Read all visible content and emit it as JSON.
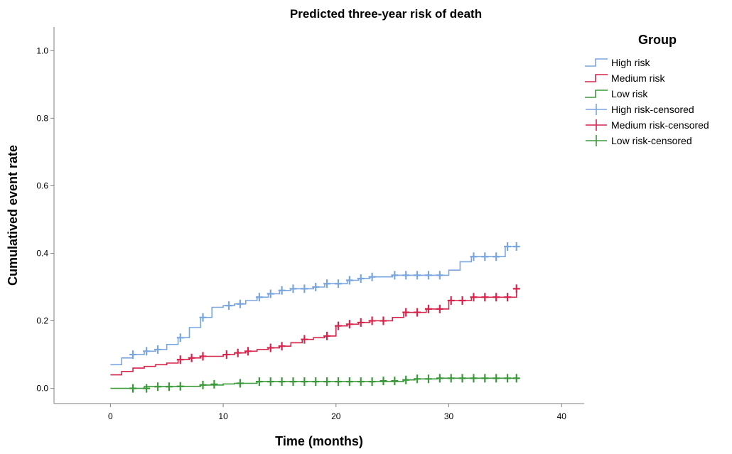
{
  "chart_data": {
    "type": "line",
    "subtype": "kaplan-meier-cumulative-event",
    "title": "Predicted three-year risk of death",
    "xlabel": "Time (months)",
    "ylabel": "Cumulatived event rate",
    "xlim": [
      -5,
      42
    ],
    "ylim": [
      -0.045,
      1.07
    ],
    "x_ticks": [
      0,
      10,
      20,
      30,
      40
    ],
    "x_tick_labels": [
      "0",
      "10",
      "20",
      "30",
      "40"
    ],
    "y_ticks": [
      0.0,
      0.2,
      0.4,
      0.6,
      0.8,
      1.0
    ],
    "y_tick_labels": [
      "0.0",
      "0.2",
      "0.4",
      "0.6",
      "0.8",
      "1.0"
    ],
    "grid": false,
    "legend": {
      "title": "Group",
      "placement": "top-right",
      "entries": [
        {
          "label": "High risk",
          "kind": "step",
          "series": "High risk"
        },
        {
          "label": "Medium risk",
          "kind": "step",
          "series": "Medium risk"
        },
        {
          "label": "Low risk",
          "kind": "step",
          "series": "Low risk"
        },
        {
          "label": "High risk-censored",
          "kind": "censor",
          "series": "High risk"
        },
        {
          "label": "Medium risk-censored",
          "kind": "censor",
          "series": "Medium risk"
        },
        {
          "label": "Low risk-censored",
          "kind": "censor",
          "series": "Low risk"
        }
      ]
    },
    "series": [
      {
        "name": "High risk",
        "color": "#7aa6e0",
        "steps": [
          [
            0,
            0.07
          ],
          [
            1,
            0.09
          ],
          [
            2,
            0.1
          ],
          [
            3,
            0.11
          ],
          [
            4,
            0.115
          ],
          [
            5,
            0.13
          ],
          [
            6,
            0.15
          ],
          [
            7,
            0.18
          ],
          [
            8,
            0.21
          ],
          [
            9,
            0.24
          ],
          [
            10,
            0.245
          ],
          [
            11,
            0.25
          ],
          [
            12,
            0.26
          ],
          [
            13,
            0.27
          ],
          [
            14,
            0.28
          ],
          [
            15,
            0.29
          ],
          [
            16,
            0.295
          ],
          [
            18,
            0.3
          ],
          [
            19,
            0.31
          ],
          [
            21,
            0.32
          ],
          [
            22,
            0.325
          ],
          [
            23,
            0.33
          ],
          [
            25,
            0.335
          ],
          [
            30,
            0.35
          ],
          [
            31,
            0.375
          ],
          [
            32,
            0.39
          ],
          [
            35,
            0.42
          ],
          [
            36,
            0.42
          ]
        ],
        "censored": [
          [
            2,
            0.1
          ],
          [
            3.2,
            0.11
          ],
          [
            4.2,
            0.115
          ],
          [
            6.2,
            0.15
          ],
          [
            8.2,
            0.21
          ],
          [
            10.5,
            0.245
          ],
          [
            11.5,
            0.25
          ],
          [
            13.2,
            0.27
          ],
          [
            14.2,
            0.28
          ],
          [
            15.2,
            0.29
          ],
          [
            16.2,
            0.295
          ],
          [
            17.2,
            0.295
          ],
          [
            18.2,
            0.3
          ],
          [
            19.2,
            0.31
          ],
          [
            20.2,
            0.31
          ],
          [
            21.2,
            0.32
          ],
          [
            22.2,
            0.325
          ],
          [
            23.2,
            0.33
          ],
          [
            25.2,
            0.335
          ],
          [
            26.2,
            0.335
          ],
          [
            27.2,
            0.335
          ],
          [
            28.2,
            0.335
          ],
          [
            29.2,
            0.335
          ],
          [
            32.2,
            0.39
          ],
          [
            33.2,
            0.39
          ],
          [
            34.2,
            0.39
          ],
          [
            35.2,
            0.42
          ],
          [
            36,
            0.42
          ]
        ]
      },
      {
        "name": "Medium risk",
        "color": "#d6244a",
        "steps": [
          [
            0,
            0.04
          ],
          [
            1,
            0.05
          ],
          [
            2,
            0.06
          ],
          [
            3,
            0.065
          ],
          [
            4,
            0.07
          ],
          [
            5,
            0.075
          ],
          [
            6,
            0.085
          ],
          [
            7,
            0.09
          ],
          [
            8,
            0.095
          ],
          [
            10,
            0.1
          ],
          [
            11,
            0.105
          ],
          [
            12,
            0.11
          ],
          [
            13,
            0.115
          ],
          [
            14,
            0.12
          ],
          [
            15,
            0.125
          ],
          [
            16,
            0.135
          ],
          [
            17,
            0.145
          ],
          [
            18,
            0.15
          ],
          [
            19,
            0.155
          ],
          [
            20,
            0.185
          ],
          [
            21,
            0.19
          ],
          [
            22,
            0.195
          ],
          [
            23,
            0.2
          ],
          [
            25,
            0.21
          ],
          [
            26,
            0.225
          ],
          [
            28,
            0.235
          ],
          [
            30,
            0.26
          ],
          [
            32,
            0.27
          ],
          [
            36,
            0.295
          ]
        ],
        "censored": [
          [
            6.2,
            0.085
          ],
          [
            7.2,
            0.09
          ],
          [
            8.2,
            0.095
          ],
          [
            10.3,
            0.1
          ],
          [
            11.3,
            0.105
          ],
          [
            12.2,
            0.11
          ],
          [
            14.2,
            0.12
          ],
          [
            15.2,
            0.125
          ],
          [
            17.2,
            0.145
          ],
          [
            19.2,
            0.155
          ],
          [
            20.2,
            0.185
          ],
          [
            21.2,
            0.19
          ],
          [
            22.2,
            0.195
          ],
          [
            23.2,
            0.2
          ],
          [
            24.2,
            0.2
          ],
          [
            26.2,
            0.225
          ],
          [
            27.2,
            0.225
          ],
          [
            28.2,
            0.235
          ],
          [
            29.2,
            0.235
          ],
          [
            30.2,
            0.26
          ],
          [
            31.2,
            0.26
          ],
          [
            32.2,
            0.27
          ],
          [
            33.2,
            0.27
          ],
          [
            34.2,
            0.27
          ],
          [
            35.2,
            0.27
          ],
          [
            36,
            0.295
          ]
        ]
      },
      {
        "name": "Low risk",
        "color": "#3a9a3a",
        "steps": [
          [
            0,
            0.0
          ],
          [
            3,
            0.005
          ],
          [
            6,
            0.006
          ],
          [
            8,
            0.01
          ],
          [
            10,
            0.013
          ],
          [
            11,
            0.015
          ],
          [
            13,
            0.02
          ],
          [
            26,
            0.025
          ],
          [
            27,
            0.028
          ],
          [
            29,
            0.03
          ],
          [
            36,
            0.03
          ]
        ],
        "censored": [
          [
            2,
            0.0
          ],
          [
            3.2,
            0.0
          ],
          [
            4.2,
            0.005
          ],
          [
            5.2,
            0.005
          ],
          [
            6.2,
            0.006
          ],
          [
            8.2,
            0.01
          ],
          [
            9.2,
            0.012
          ],
          [
            11.5,
            0.015
          ],
          [
            13.2,
            0.02
          ],
          [
            14.2,
            0.02
          ],
          [
            15.2,
            0.02
          ],
          [
            16.2,
            0.02
          ],
          [
            17.2,
            0.02
          ],
          [
            18.2,
            0.02
          ],
          [
            19.2,
            0.02
          ],
          [
            20.2,
            0.02
          ],
          [
            21.2,
            0.02
          ],
          [
            22.2,
            0.02
          ],
          [
            23.2,
            0.02
          ],
          [
            24.2,
            0.022
          ],
          [
            25.2,
            0.022
          ],
          [
            26.2,
            0.025
          ],
          [
            27.2,
            0.028
          ],
          [
            28.2,
            0.028
          ],
          [
            29.2,
            0.03
          ],
          [
            30.2,
            0.03
          ],
          [
            31.2,
            0.03
          ],
          [
            32.2,
            0.03
          ],
          [
            33.2,
            0.03
          ],
          [
            34.2,
            0.03
          ],
          [
            35.2,
            0.03
          ],
          [
            36,
            0.03
          ]
        ]
      }
    ]
  }
}
